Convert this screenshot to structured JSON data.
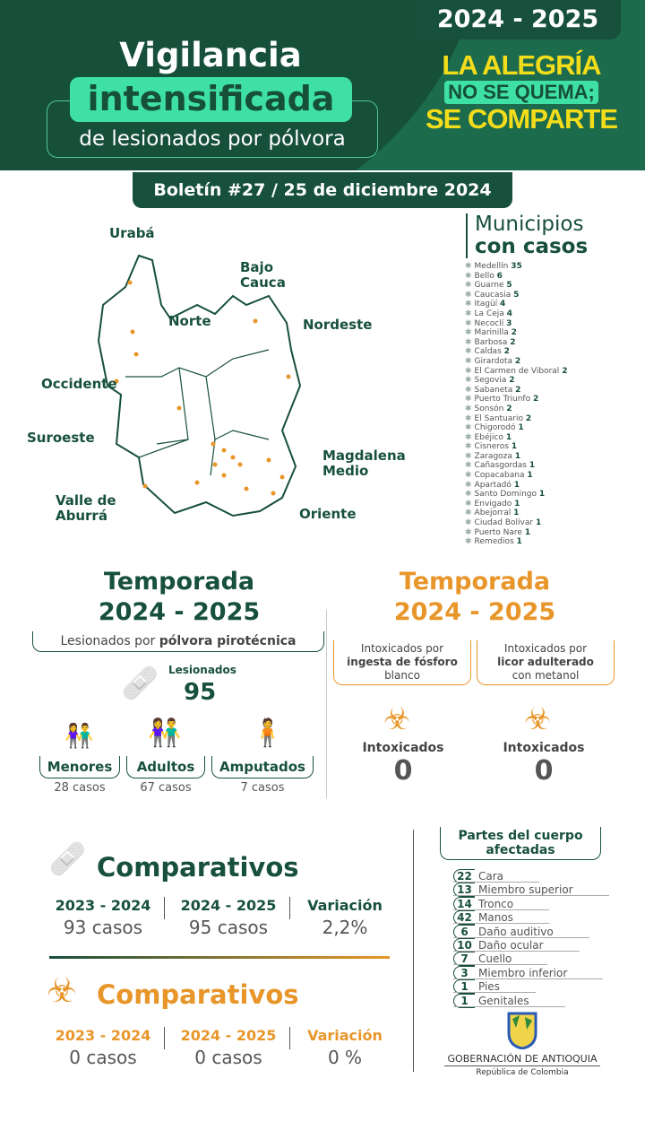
{
  "header": {
    "season": "2024 - 2025",
    "title_line1": "Vigilancia",
    "title_line2": "intensificada",
    "title_line3": "de lesionados por pólvora",
    "slogan_line1": "LA ALEGRÍA",
    "slogan_line2": "NO SE QUEMA;",
    "slogan_line3": "SE COMPARTE",
    "bulletin": "Boletín #27 / 25 de diciembre 2024"
  },
  "map": {
    "regions": [
      "Urabá",
      "Bajo Cauca",
      "Norte",
      "Nordeste",
      "Occidente",
      "Suroeste",
      "Magdalena Medio",
      "Valle de Aburrá",
      "Oriente"
    ]
  },
  "municipios": {
    "title_line1": "Municipios",
    "title_line2": "con casos",
    "items": [
      {
        "name": "Medellín",
        "count": "35"
      },
      {
        "name": "Bello",
        "count": "6"
      },
      {
        "name": "Guarne",
        "count": "5"
      },
      {
        "name": "Caucasia",
        "count": "5"
      },
      {
        "name": "Itagüí",
        "count": "4"
      },
      {
        "name": "La Ceja",
        "count": "4"
      },
      {
        "name": "Necoclí",
        "count": "3"
      },
      {
        "name": "Marinilla",
        "count": "2"
      },
      {
        "name": "Barbosa",
        "count": "2"
      },
      {
        "name": "Caldas",
        "count": "2"
      },
      {
        "name": "Girardota",
        "count": "2"
      },
      {
        "name": "El Carmen de Viboral",
        "count": "2"
      },
      {
        "name": "Segovia",
        "count": "2"
      },
      {
        "name": "Sabaneta",
        "count": "2"
      },
      {
        "name": "Puerto Triunfo",
        "count": "2"
      },
      {
        "name": "Sonsón",
        "count": "2"
      },
      {
        "name": "El Santuario",
        "count": "2"
      },
      {
        "name": "Chigorodó",
        "count": "1"
      },
      {
        "name": "Ebéjico",
        "count": "1"
      },
      {
        "name": "Cisneros",
        "count": "1"
      },
      {
        "name": "Zaragoza",
        "count": "1"
      },
      {
        "name": "Cañasgordas",
        "count": "1"
      },
      {
        "name": "Copacabana",
        "count": "1"
      },
      {
        "name": "Apartadó",
        "count": "1"
      },
      {
        "name": "Santo Domingo",
        "count": "1"
      },
      {
        "name": "Envigado",
        "count": "1"
      },
      {
        "name": "Abejorral",
        "count": "1"
      },
      {
        "name": "Ciudad Bolívar",
        "count": "1"
      },
      {
        "name": "Puerto Nare",
        "count": "1"
      },
      {
        "name": "Remedios",
        "count": "1"
      }
    ]
  },
  "polvora": {
    "title_line1": "Temporada",
    "title_line2": "2024 - 2025",
    "subtitle_pre": "Lesionados por ",
    "subtitle_bold": "pólvora pirotécnica",
    "total_label": "Lesionados",
    "total": "95",
    "groups": [
      {
        "label": "Menores",
        "cases": "28 casos"
      },
      {
        "label": "Adultos",
        "cases": "67 casos"
      },
      {
        "label": "Amputados",
        "cases": "7 casos"
      }
    ]
  },
  "intox": {
    "title_line1": "Temporada",
    "title_line2": "2024 - 2025",
    "cards": [
      {
        "pre": "Intoxicados por",
        "bold": "ingesta de fósforo",
        "post": "blanco",
        "label": "Intoxicados",
        "value": "0"
      },
      {
        "pre": "Intoxicados por",
        "bold": "licor adulterado",
        "post": "con metanol",
        "label": "Intoxicados",
        "value": "0"
      }
    ]
  },
  "comparativos": [
    {
      "title": "Comparativos",
      "cols": [
        {
          "label": "2023 - 2024",
          "value": "93 casos"
        },
        {
          "label": "2024 - 2025",
          "value": "95 casos"
        },
        {
          "label": "Variación",
          "value": "2,2%"
        }
      ]
    },
    {
      "title": "Comparativos",
      "cols": [
        {
          "label": "2023 - 2024",
          "value": "0 casos"
        },
        {
          "label": "2024 - 2025",
          "value": "0 casos"
        },
        {
          "label": "Variación",
          "value": "0 %"
        }
      ]
    }
  ],
  "body_parts": {
    "title_line1": "Partes del cuerpo",
    "title_line2": "afectadas",
    "items": [
      {
        "n": "22",
        "label": "Cara"
      },
      {
        "n": "13",
        "label": "Miembro superior"
      },
      {
        "n": "14",
        "label": "Tronco"
      },
      {
        "n": "42",
        "label": "Manos"
      },
      {
        "n": "6",
        "label": "Daño auditivo"
      },
      {
        "n": "10",
        "label": "Daño ocular"
      },
      {
        "n": "7",
        "label": "Cuello"
      },
      {
        "n": "3",
        "label": "Miembro inferior"
      },
      {
        "n": "1",
        "label": "Pies"
      },
      {
        "n": "1",
        "label": "Genitales"
      }
    ]
  },
  "footer": {
    "org": "GOBERNACIÓN DE ANTIOQUIA",
    "country": "República de Colombia"
  },
  "colors": {
    "dark_green": "#17503c",
    "mint": "#3fe0a8",
    "yellow": "#f3dd1b",
    "orange": "#e8962a"
  }
}
